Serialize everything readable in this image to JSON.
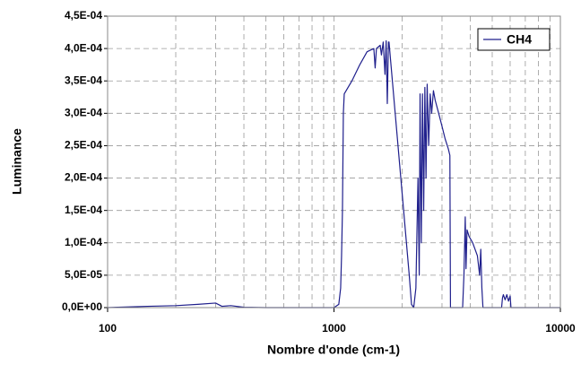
{
  "chart_data": {
    "type": "line",
    "x_label": "Nombre d'onde (cm-1)",
    "y_label": "Luminance",
    "log_x": true,
    "grid": true,
    "legend": "upper right",
    "xlim": [
      100,
      10000
    ],
    "xticks": [
      100,
      1000,
      10000
    ],
    "xminorticks": [
      200,
      300,
      400,
      500,
      600,
      700,
      800,
      900,
      2000,
      3000,
      4000,
      5000,
      6000,
      7000,
      8000,
      9000
    ],
    "ylim": [
      0,
      0.00045
    ],
    "yticks": [
      {
        "value": 0,
        "label": "0,0E+00"
      },
      {
        "value": 5e-05,
        "label": "5,0E-05"
      },
      {
        "value": 0.0001,
        "label": "1,0E-04"
      },
      {
        "value": 0.00015,
        "label": "1,5E-04"
      },
      {
        "value": 0.0002,
        "label": "2,0E-04"
      },
      {
        "value": 0.00025,
        "label": "2,5E-04"
      },
      {
        "value": 0.0003,
        "label": "3,0E-04"
      },
      {
        "value": 0.00035,
        "label": "3,5E-04"
      },
      {
        "value": 0.0004,
        "label": "4,0E-04"
      },
      {
        "value": 0.00045,
        "label": "4,5E-04"
      }
    ],
    "x": [
      100,
      150,
      200,
      250,
      300,
      320,
      350,
      400,
      500,
      900,
      1000,
      1050,
      1070,
      1080,
      1090,
      1100,
      1110,
      1200,
      1300,
      1400,
      1500,
      1520,
      1540,
      1600,
      1620,
      1650,
      1680,
      1700,
      1720,
      1740,
      1750,
      2150,
      2200,
      2250,
      2300,
      2350,
      2380,
      2400,
      2430,
      2460,
      2490,
      2520,
      2550,
      2580,
      2620,
      2660,
      2700,
      2750,
      2800,
      2900,
      3000,
      3100,
      3200,
      3250,
      3270,
      3700,
      3750,
      3800,
      3830,
      3870,
      3950,
      4100,
      4300,
      4400,
      4450,
      4500,
      4550,
      5500,
      5550,
      5600,
      5700,
      5800,
      5900,
      6000,
      6050,
      10000
    ],
    "series": [
      {
        "name": "CH4",
        "color": "#1f1f8c",
        "values": [
          0,
          2e-06,
          3e-06,
          5e-06,
          7e-06,
          2e-06,
          3e-06,
          5e-07,
          0,
          0,
          0,
          5e-06,
          3e-05,
          8e-05,
          0.00015,
          0.0003,
          0.00033,
          0.00035,
          0.000375,
          0.000395,
          0.0004,
          0.00037,
          0.0004,
          0.000405,
          0.00039,
          0.00041,
          0.00036,
          0.000412,
          0.000315,
          0.00041,
          0.00041,
          5e-05,
          5e-06,
          0,
          3e-05,
          0.0002,
          5e-05,
          0.00033,
          0.0001,
          0.00033,
          0.00015,
          0.00034,
          0.0002,
          0.000345,
          0.00025,
          0.00033,
          0.0003,
          0.000335,
          0.00032,
          0.0003,
          0.00028,
          0.00026,
          0.000245,
          0.000235,
          0,
          0,
          5e-05,
          0.00014,
          6e-05,
          0.00012,
          0.00011,
          0.0001,
          8e-05,
          5e-05,
          9e-05,
          3e-05,
          0,
          0,
          1.5e-05,
          2e-05,
          1.2e-05,
          2e-05,
          1e-05,
          1.8e-05,
          0,
          0
        ]
      }
    ]
  }
}
